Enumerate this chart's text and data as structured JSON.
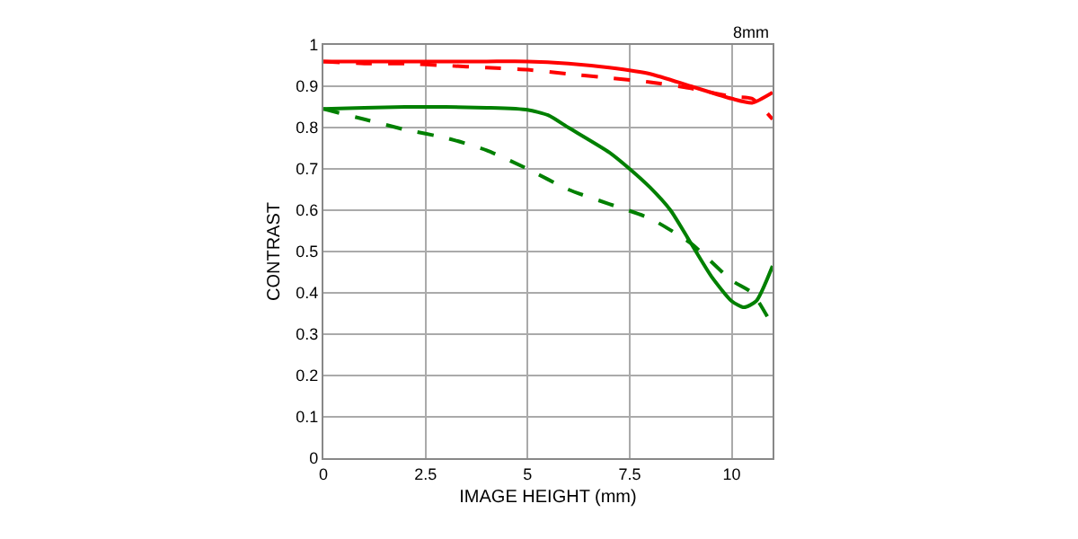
{
  "chart_data": {
    "type": "line",
    "xlabel": "IMAGE HEIGHT (mm)",
    "ylabel": "CONTRAST",
    "annotations": [
      "8mm"
    ],
    "xlim": [
      0,
      11
    ],
    "xticks": [
      0,
      2.5,
      5,
      7.5,
      10
    ],
    "ylim": [
      0,
      1
    ],
    "yticks": [
      0,
      0.1,
      0.2,
      0.3,
      0.4,
      0.5,
      0.6,
      0.7,
      0.8,
      0.9,
      1
    ],
    "grid": true,
    "marker": "none",
    "series": [
      {
        "color": "#ff0000",
        "line_style": "solid",
        "x": [
          0,
          1,
          2,
          3,
          4,
          5,
          6,
          7,
          8,
          9,
          10,
          10.5,
          11
        ],
        "values": [
          0.96,
          0.96,
          0.96,
          0.96,
          0.96,
          0.96,
          0.955,
          0.945,
          0.93,
          0.9,
          0.87,
          0.86,
          0.885
        ]
      },
      {
        "color": "#ff0000",
        "line_style": "dashed",
        "x": [
          0,
          1,
          2,
          3,
          4,
          5,
          6,
          7,
          8,
          9,
          10,
          10.5,
          11
        ],
        "values": [
          0.96,
          0.955,
          0.955,
          0.95,
          0.945,
          0.94,
          0.93,
          0.92,
          0.91,
          0.895,
          0.875,
          0.87,
          0.82
        ]
      },
      {
        "color": "#008000",
        "line_style": "solid",
        "x": [
          0,
          1,
          2,
          3,
          4,
          5,
          5.5,
          6,
          7,
          7.5,
          8,
          8.5,
          9,
          9.5,
          10,
          10.3,
          10.6,
          11
        ],
        "values": [
          0.845,
          0.848,
          0.85,
          0.85,
          0.848,
          0.843,
          0.83,
          0.8,
          0.74,
          0.7,
          0.655,
          0.6,
          0.52,
          0.44,
          0.38,
          0.365,
          0.38,
          0.465
        ]
      },
      {
        "color": "#008000",
        "line_style": "dashed",
        "x": [
          0,
          1,
          2,
          3,
          4,
          5,
          6,
          7,
          8,
          9,
          10,
          10.5,
          11
        ],
        "values": [
          0.845,
          0.82,
          0.795,
          0.775,
          0.745,
          0.7,
          0.65,
          0.615,
          0.58,
          0.52,
          0.43,
          0.4,
          0.32
        ]
      }
    ]
  }
}
